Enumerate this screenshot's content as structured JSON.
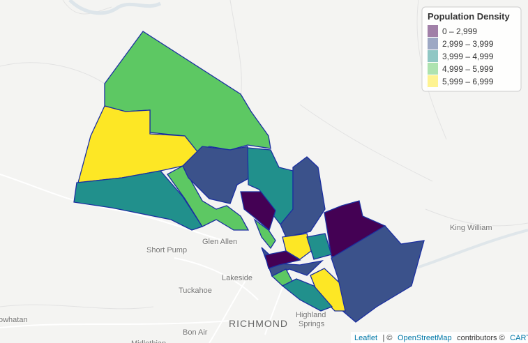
{
  "legend": {
    "title": "Population Density",
    "items": [
      {
        "label": "0 – 2,999",
        "color": "#440154"
      },
      {
        "label": "2,999 – 3,999",
        "color": "#3b528b"
      },
      {
        "label": "3,999 – 4,999",
        "color": "#21908c"
      },
      {
        "label": "4,999 – 5,999",
        "color": "#5dc863"
      },
      {
        "label": "5,999 – 6,999",
        "color": "#fde725"
      }
    ]
  },
  "places": [
    {
      "label": "Short Pump"
    },
    {
      "label": "Glen Allen"
    },
    {
      "label": "Lakeside"
    },
    {
      "label": "Tuckahoe"
    },
    {
      "label": "RICHMOND"
    },
    {
      "label": "Highland"
    },
    {
      "label": "Springs"
    },
    {
      "label": "Bon Air"
    },
    {
      "label": "King William"
    },
    {
      "label": "owhatan"
    },
    {
      "label": "Midlothian"
    }
  ],
  "attribution": {
    "leaflet": "Leaflet",
    "sep": "| ©",
    "osm": "OpenStreetMap",
    "contrib": "contributors ©",
    "carto": "CARTO"
  }
}
